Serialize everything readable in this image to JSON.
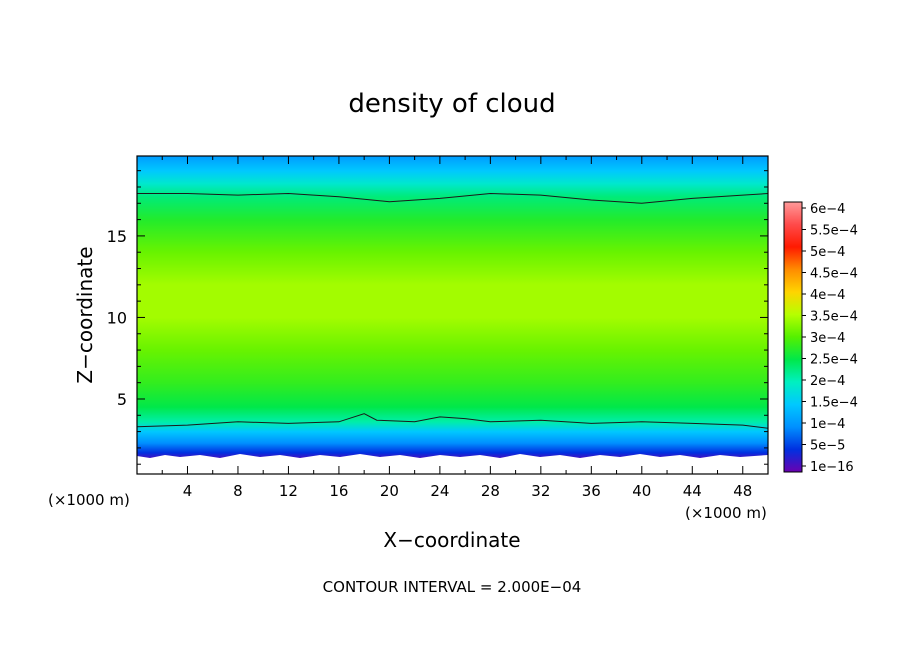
{
  "chart_data": {
    "type": "heatmap",
    "title": "density of cloud",
    "xlabel": "X−coordinate",
    "ylabel": "Z−coordinate",
    "x_unit_left": "(×1000 m)",
    "x_unit_right": "(×1000 m)",
    "xlim": [
      0,
      50
    ],
    "ylim": [
      0.4,
      19.9
    ],
    "x_ticks": [
      4,
      8,
      12,
      16,
      20,
      24,
      28,
      32,
      36,
      40,
      44,
      48
    ],
    "x_tick_labels": [
      "4",
      "8",
      "12",
      "16",
      "20",
      "24",
      "28",
      "32",
      "36",
      "40",
      "44",
      "48"
    ],
    "y_ticks": [
      5,
      10,
      15
    ],
    "y_tick_labels": [
      "5",
      "10",
      "15"
    ],
    "footer": "CONTOUR INTERVAL = 2.000E−04",
    "contour_interval": 0.0002,
    "colorbar": {
      "labels": [
        "6e−4",
        "5.5e−4",
        "5e−4",
        "4.5e−4",
        "4e−4",
        "3.5e−4",
        "3e−4",
        "2.5e−4",
        "2e−4",
        "1.5e−4",
        "1e−4",
        "5e−5",
        "1e−16"
      ],
      "colors": [
        "#ff9a9a",
        "#ff4a4a",
        "#ff1a00",
        "#ff8c00",
        "#ffd400",
        "#b6ff00",
        "#55f000",
        "#00e84a",
        "#00f0c0",
        "#00c8ff",
        "#0090ff",
        "#0030e0",
        "#6a00b0"
      ]
    },
    "vertical_profile": [
      {
        "z": 19.9,
        "value": 0.00011
      },
      {
        "z": 19.0,
        "value": 0.00015
      },
      {
        "z": 18.2,
        "value": 0.00019
      },
      {
        "z": 17.4,
        "value": 0.00023
      },
      {
        "z": 16.0,
        "value": 0.00027
      },
      {
        "z": 14.0,
        "value": 0.00031
      },
      {
        "z": 12.0,
        "value": 0.00034
      },
      {
        "z": 10.0,
        "value": 0.00034
      },
      {
        "z": 8.0,
        "value": 0.00031
      },
      {
        "z": 6.0,
        "value": 0.00028
      },
      {
        "z": 4.5,
        "value": 0.00025
      },
      {
        "z": 3.6,
        "value": 0.00021
      },
      {
        "z": 3.0,
        "value": 0.00015
      },
      {
        "z": 2.3,
        "value": 0.0001
      },
      {
        "z": 1.7,
        "value": 5e-05
      },
      {
        "z": 1.2,
        "value": 1e-06
      },
      {
        "z": 0.9,
        "value": 0
      }
    ],
    "contours": [
      {
        "level": 0.0002,
        "points": [
          [
            0,
            17.6
          ],
          [
            4,
            17.6
          ],
          [
            8,
            17.5
          ],
          [
            12,
            17.6
          ],
          [
            16,
            17.4
          ],
          [
            20,
            17.1
          ],
          [
            24,
            17.3
          ],
          [
            28,
            17.6
          ],
          [
            32,
            17.5
          ],
          [
            36,
            17.2
          ],
          [
            40,
            17.0
          ],
          [
            44,
            17.3
          ],
          [
            48,
            17.5
          ],
          [
            50,
            17.6
          ]
        ]
      },
      {
        "level": 0.0002,
        "points": [
          [
            0,
            3.3
          ],
          [
            4,
            3.4
          ],
          [
            8,
            3.6
          ],
          [
            12,
            3.5
          ],
          [
            16,
            3.6
          ],
          [
            18,
            4.1
          ],
          [
            19,
            3.7
          ],
          [
            22,
            3.6
          ],
          [
            24,
            3.9
          ],
          [
            26,
            3.8
          ],
          [
            28,
            3.6
          ],
          [
            32,
            3.7
          ],
          [
            36,
            3.5
          ],
          [
            40,
            3.6
          ],
          [
            44,
            3.5
          ],
          [
            48,
            3.4
          ],
          [
            50,
            3.2
          ]
        ]
      }
    ]
  }
}
